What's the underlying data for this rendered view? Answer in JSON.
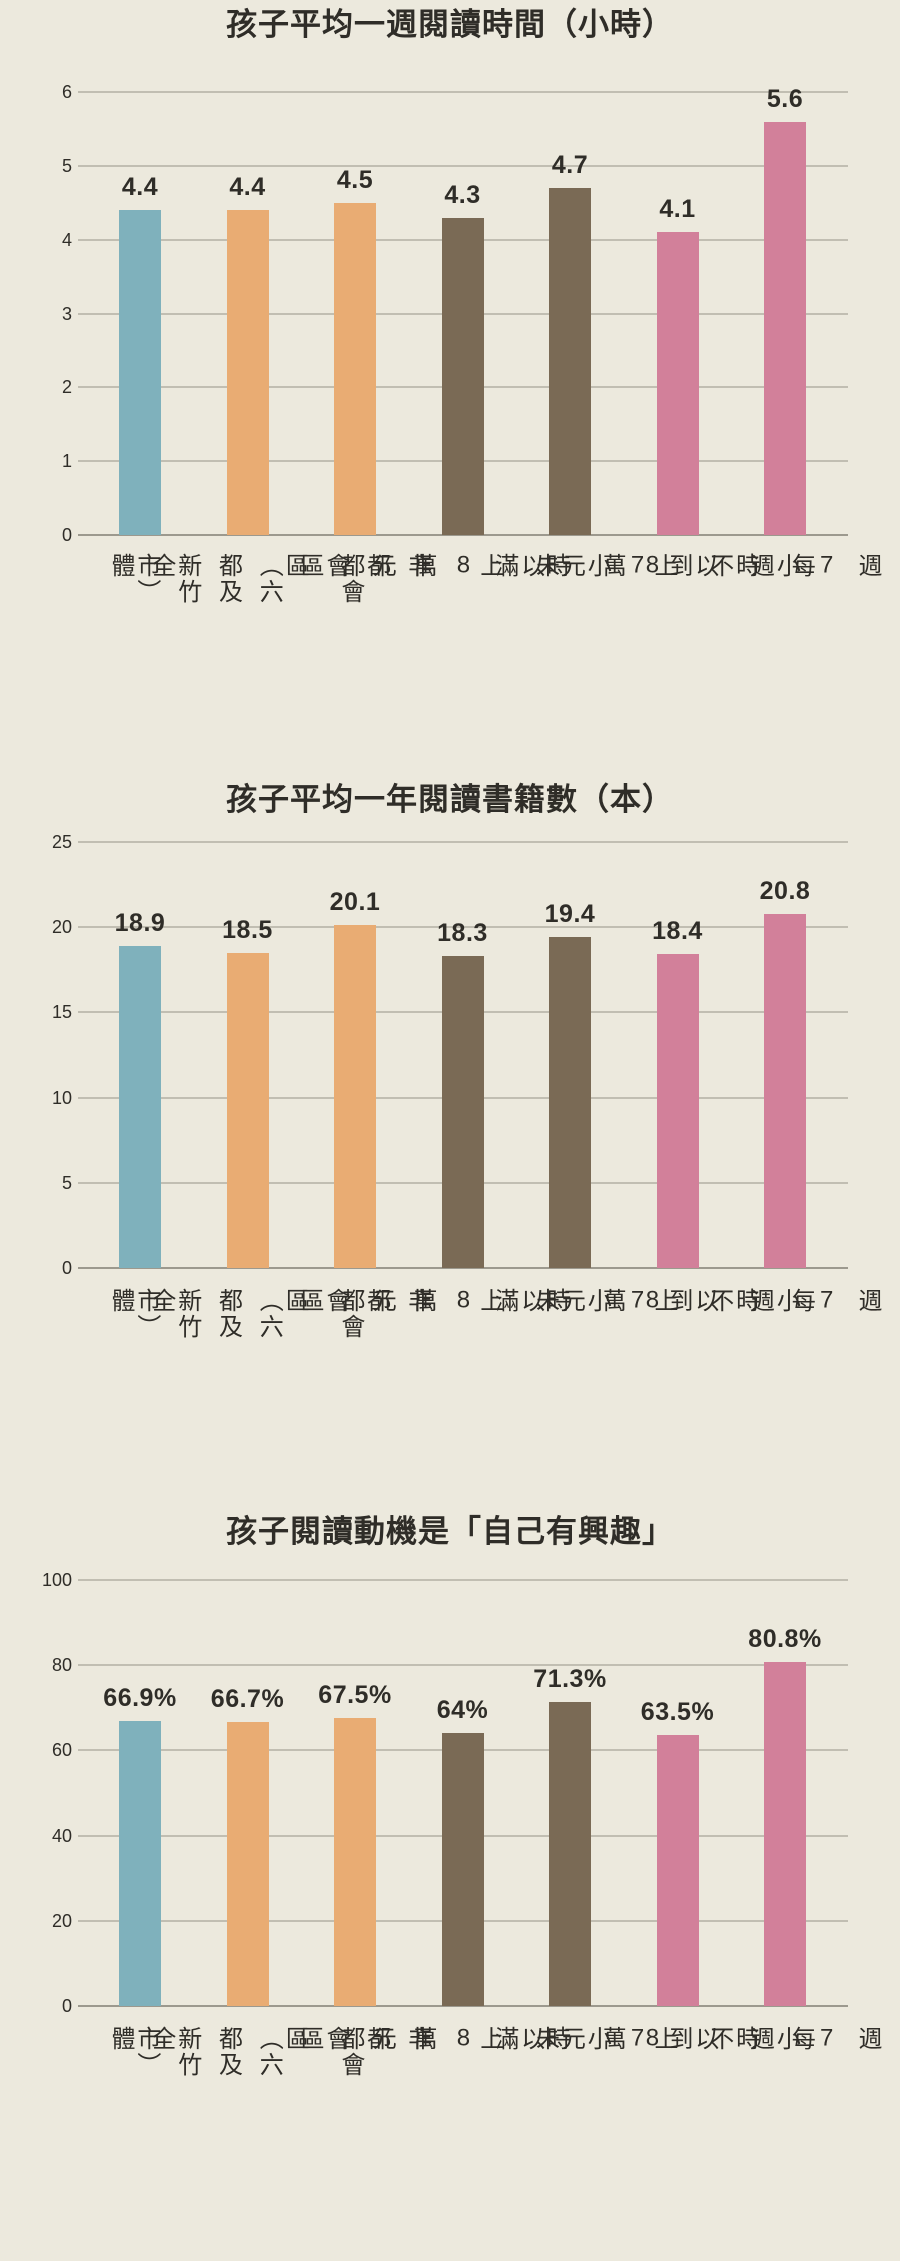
{
  "page": {
    "background": "#ECE9DD",
    "text_color": "#2F2D28"
  },
  "palette": {
    "teal": "#7FB1BC",
    "orange": "#E9AC73",
    "brown": "#7A6A55",
    "pink": "#D2809A",
    "gridline": "#C1BEB2",
    "axis_line": "#9C998E"
  },
  "categories": [
    "全體",
    "都會區\n（六都及新竹市）",
    "非都會區",
    "未滿 8 萬元",
    "8 萬元以上",
    "每週不到 7 小時",
    "每週 7 小時以上"
  ],
  "category_colors": [
    "teal",
    "orange",
    "orange",
    "brown",
    "brown",
    "pink",
    "pink"
  ],
  "chart_data": [
    {
      "type": "bar",
      "title": "孩子平均一週閱讀時間（小時）",
      "categories": [
        "全體",
        "都會區（六都及新竹市）",
        "非都會區",
        "未滿 8 萬元",
        "8 萬元以上",
        "每週不到 7 小時",
        "每週 7 小時以上"
      ],
      "values": [
        4.4,
        4.4,
        4.5,
        4.3,
        4.7,
        4.1,
        5.6
      ],
      "value_labels": [
        "4.4",
        "4.4",
        "4.5",
        "4.3",
        "4.7",
        "4.1",
        "5.6"
      ],
      "ylim": [
        0,
        6
      ],
      "yticks": [
        0,
        1,
        2,
        3,
        4,
        5,
        6
      ],
      "grid": true,
      "legend": false,
      "xlabel": "",
      "ylabel": ""
    },
    {
      "type": "bar",
      "title": "孩子平均一年閱讀書籍數（本）",
      "categories": [
        "全體",
        "都會區（六都及新竹市）",
        "非都會區",
        "未滿 8 萬元",
        "8 萬元以上",
        "每週不到 7 小時",
        "每週 7 小時以上"
      ],
      "values": [
        18.9,
        18.5,
        20.1,
        18.3,
        19.4,
        18.4,
        20.8
      ],
      "value_labels": [
        "18.9",
        "18.5",
        "20.1",
        "18.3",
        "19.4",
        "18.4",
        "20.8"
      ],
      "ylim": [
        0,
        25
      ],
      "yticks": [
        0,
        5,
        10,
        15,
        20,
        25
      ],
      "grid": true,
      "legend": false,
      "xlabel": "",
      "ylabel": ""
    },
    {
      "type": "bar",
      "title": "孩子閱讀動機是「自己有興趣」",
      "categories": [
        "全體",
        "都會區（六都及新竹市）",
        "非都會區",
        "未滿 8 萬元",
        "8 萬元以上",
        "每週不到 7 小時",
        "每週 7 小時以上"
      ],
      "values": [
        66.9,
        66.7,
        67.5,
        64,
        71.3,
        63.5,
        80.8
      ],
      "value_labels": [
        "66.9%",
        "66.7%",
        "67.5%",
        "64%",
        "71.3%",
        "63.5%",
        "80.8%"
      ],
      "ylim": [
        0,
        100
      ],
      "yticks": [
        0,
        20,
        40,
        60,
        80,
        100
      ],
      "grid": true,
      "legend": false,
      "xlabel": "",
      "ylabel": ""
    }
  ]
}
